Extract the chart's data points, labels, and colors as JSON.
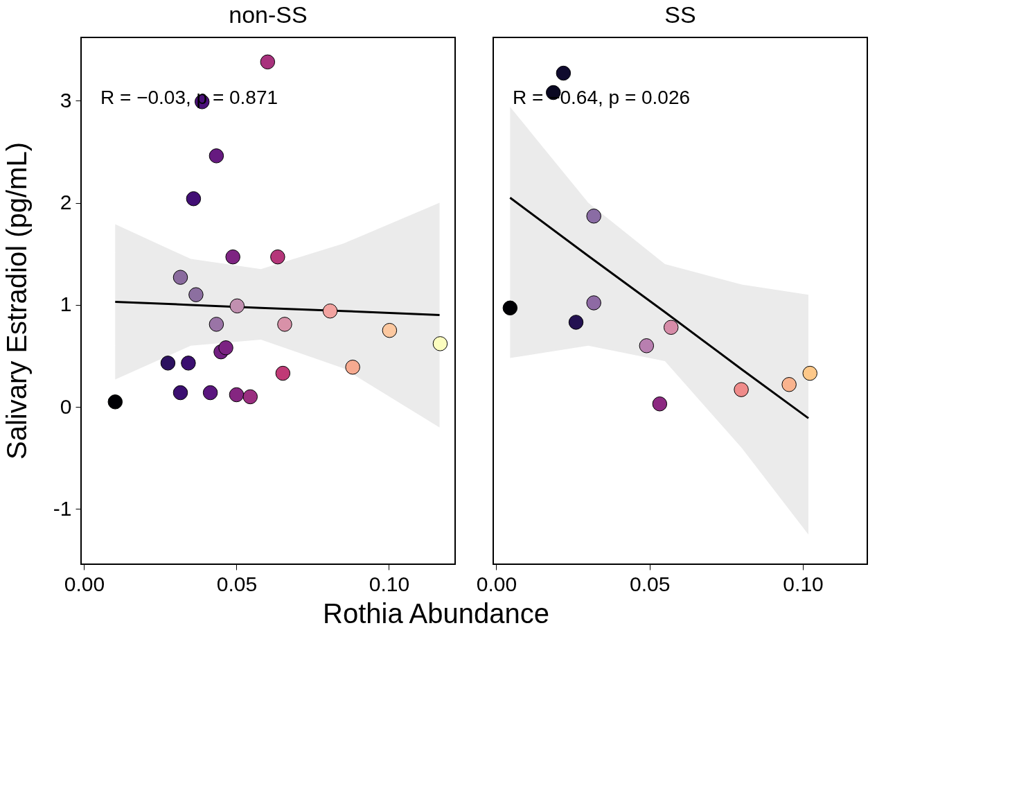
{
  "chart_data": [
    {
      "type": "scatter",
      "title": "non-SS",
      "xlabel": "Rothia Abundance",
      "ylabel": "Salivary Estradiol (pg/mL)",
      "xlim": [
        -0.001,
        0.1217
      ],
      "ylim": [
        -1.54,
        3.62
      ],
      "xticks": [
        {
          "value": 0,
          "label": "0.00"
        },
        {
          "value": 0.05,
          "label": "0.05"
        },
        {
          "value": 0.1,
          "label": "0.10"
        }
      ],
      "yticks": [
        -1,
        0,
        1,
        2,
        3
      ],
      "grid": false,
      "marker": "circle",
      "annotations": [
        "R = −0.03, p = 0.871"
      ],
      "series": [
        {
          "type": "line",
          "color": "#000000",
          "x": [
            0.0102,
            0.035,
            0.058,
            0.085,
            0.1166
          ],
          "values": [
            1.03,
            1.0,
            0.97,
            0.94,
            0.9
          ],
          "lower": [
            0.27,
            0.6,
            0.66,
            0.38,
            -0.2
          ],
          "upper": [
            1.79,
            1.45,
            1.35,
            1.6,
            2.0
          ],
          "marker": "none"
        },
        {
          "x": [
            0.0102,
            0.0275,
            0.0316,
            0.0316,
            0.0342,
            0.0359,
            0.0367,
            0.0387,
            0.0414,
            0.0434,
            0.0434,
            0.0449,
            0.0465,
            0.0488,
            0.05,
            0.0502,
            0.0545,
            0.0602,
            0.0635,
            0.0652,
            0.0658,
            0.0807,
            0.0881,
            0.1002,
            0.1168
          ],
          "values": [
            0.05,
            0.43,
            1.27,
            0.14,
            0.43,
            2.04,
            1.1,
            2.99,
            0.14,
            2.46,
            0.81,
            0.54,
            0.58,
            1.47,
            0.12,
            0.99,
            0.1,
            3.38,
            1.47,
            0.33,
            0.81,
            0.94,
            0.39,
            0.75,
            0.62
          ],
          "colors": [
            "#000004",
            "#2c115f",
            "#8a6b9e",
            "#3b0f70",
            "#3b0f70",
            "#420f75",
            "#8c6fa0",
            "#4a1079",
            "#5a167e",
            "#661a80",
            "#9a74a6",
            "#721f81",
            "#7b2382",
            "#7e2482",
            "#852681",
            "#c190b0",
            "#9a2e80",
            "#a8327d",
            "#b5367a",
            "#c03a76",
            "#d891a8",
            "#f2a3a0",
            "#f6aa90",
            "#fcc8a0",
            "#fcfdbf"
          ]
        }
      ]
    },
    {
      "type": "scatter",
      "title": "SS",
      "xlim": [
        -0.001,
        0.121
      ],
      "ylim": [
        -1.54,
        3.62
      ],
      "xticks": [
        {
          "value": 0,
          "label": "0.00"
        },
        {
          "value": 0.05,
          "label": "0.05"
        },
        {
          "value": 0.1,
          "label": "0.10"
        }
      ],
      "tick_labels": "x",
      "grid": false,
      "marker": "circle",
      "annotations": [
        "R = −0.64, p = 0.026"
      ],
      "series": [
        {
          "type": "line",
          "color": "#000000",
          "x": [
            0.0045,
            0.03,
            0.055,
            0.08,
            0.1018
          ],
          "values": [
            2.05,
            1.48,
            0.93,
            0.37,
            -0.11
          ],
          "lower": [
            0.48,
            0.6,
            0.45,
            -0.4,
            -1.25
          ],
          "upper": [
            2.94,
            2.0,
            1.4,
            1.2,
            1.1
          ],
          "marker": "none"
        },
        {
          "x": [
            0.0045,
            0.0186,
            0.0219,
            0.026,
            0.0318,
            0.0318,
            0.049,
            0.0533,
            0.057,
            0.0799,
            0.0955,
            0.1023
          ],
          "values": [
            0.97,
            3.08,
            3.27,
            0.83,
            1.87,
            1.02,
            0.6,
            0.03,
            0.78,
            0.17,
            0.22,
            0.33
          ],
          "colors": [
            "#000004",
            "#0a0822",
            "#100b2e",
            "#231151",
            "#8a6ca4",
            "#8e6aa4",
            "#b87fb0",
            "#8c2981",
            "#d68ca8",
            "#ef8b8a",
            "#f9b38e",
            "#fdc889"
          ]
        }
      ]
    }
  ]
}
